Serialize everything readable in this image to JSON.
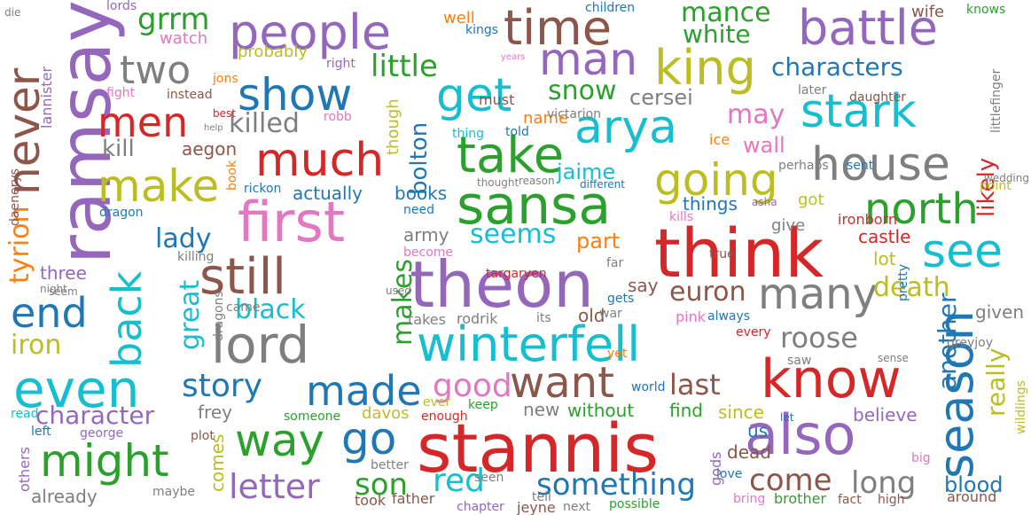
{
  "palette": {
    "blue": "#1f77b4",
    "orange": "#ff7f0e",
    "green": "#2ca02c",
    "red": "#d62728",
    "purple": "#9467bd",
    "brown": "#8c564b",
    "pink": "#e377c2",
    "gray": "#7f7f7f",
    "olive": "#bcbd22",
    "cyan": "#17becf"
  },
  "words": [
    {
      "text": "stannis",
      "color": "red"
    },
    {
      "text": "think",
      "color": "red"
    },
    {
      "text": "theon",
      "color": "purple"
    },
    {
      "text": "ramsay",
      "color": "purple"
    },
    {
      "text": "sansa",
      "color": "green"
    },
    {
      "text": "first",
      "color": "pink"
    },
    {
      "text": "lord",
      "color": "gray"
    },
    {
      "text": "winterfell",
      "color": "cyan"
    },
    {
      "text": "know",
      "color": "red"
    },
    {
      "text": "also",
      "color": "purple"
    },
    {
      "text": "even",
      "color": "cyan"
    },
    {
      "text": "still",
      "color": "brown"
    },
    {
      "text": "take",
      "color": "green"
    },
    {
      "text": "people",
      "color": "purple"
    },
    {
      "text": "time",
      "color": "brown"
    },
    {
      "text": "battle",
      "color": "purple"
    },
    {
      "text": "king",
      "color": "olive"
    },
    {
      "text": "arya",
      "color": "cyan"
    },
    {
      "text": "stark",
      "color": "cyan"
    },
    {
      "text": "house",
      "color": "gray"
    },
    {
      "text": "much",
      "color": "red"
    },
    {
      "text": "going",
      "color": "olive"
    },
    {
      "text": "show",
      "color": "blue"
    },
    {
      "text": "get",
      "color": "cyan"
    },
    {
      "text": "man",
      "color": "purple"
    },
    {
      "text": "make",
      "color": "olive"
    },
    {
      "text": "north",
      "color": "green"
    },
    {
      "text": "see",
      "color": "cyan"
    },
    {
      "text": "season",
      "color": "blue"
    },
    {
      "text": "many",
      "color": "gray"
    },
    {
      "text": "way",
      "color": "green"
    },
    {
      "text": "might",
      "color": "green"
    },
    {
      "text": "want",
      "color": "brown"
    },
    {
      "text": "made",
      "color": "blue"
    },
    {
      "text": "go",
      "color": "blue"
    },
    {
      "text": "never",
      "color": "brown"
    },
    {
      "text": "back",
      "color": "cyan"
    },
    {
      "text": "end",
      "color": "blue"
    },
    {
      "text": "men",
      "color": "red"
    },
    {
      "text": "two",
      "color": "gray"
    },
    {
      "text": "grrm",
      "color": "green"
    },
    {
      "text": "little",
      "color": "green"
    },
    {
      "text": "mance",
      "color": "green"
    },
    {
      "text": "white",
      "color": "green"
    },
    {
      "text": "characters",
      "color": "blue"
    },
    {
      "text": "killed",
      "color": "gray"
    },
    {
      "text": "snow",
      "color": "green"
    },
    {
      "text": "cersei",
      "color": "gray"
    },
    {
      "text": "may",
      "color": "pink"
    },
    {
      "text": "wall",
      "color": "pink"
    },
    {
      "text": "likely",
      "color": "red"
    },
    {
      "text": "kill",
      "color": "gray"
    },
    {
      "text": "aegon",
      "color": "brown"
    },
    {
      "text": "jaime",
      "color": "cyan"
    },
    {
      "text": "bolton",
      "color": "blue"
    },
    {
      "text": "tyrion",
      "color": "orange"
    },
    {
      "text": "lady",
      "color": "blue"
    },
    {
      "text": "seems",
      "color": "cyan"
    },
    {
      "text": "part",
      "color": "orange"
    },
    {
      "text": "books",
      "color": "blue"
    },
    {
      "text": "actually",
      "color": "blue"
    },
    {
      "text": "things",
      "color": "blue"
    },
    {
      "text": "got",
      "color": "olive"
    },
    {
      "text": "give",
      "color": "gray"
    },
    {
      "text": "castle",
      "color": "red"
    },
    {
      "text": "euron",
      "color": "brown"
    },
    {
      "text": "death",
      "color": "olive"
    },
    {
      "text": "roose",
      "color": "gray"
    },
    {
      "text": "another",
      "color": "blue"
    },
    {
      "text": "really",
      "color": "olive"
    },
    {
      "text": "great",
      "color": "cyan"
    },
    {
      "text": "makes",
      "color": "green"
    },
    {
      "text": "black",
      "color": "cyan"
    },
    {
      "text": "iron",
      "color": "olive"
    },
    {
      "text": "story",
      "color": "blue"
    },
    {
      "text": "good",
      "color": "pink"
    },
    {
      "text": "last",
      "color": "brown"
    },
    {
      "text": "character",
      "color": "purple"
    },
    {
      "text": "frey",
      "color": "gray"
    },
    {
      "text": "believe",
      "color": "purple"
    },
    {
      "text": "letter",
      "color": "purple"
    },
    {
      "text": "son",
      "color": "green"
    },
    {
      "text": "red",
      "color": "cyan"
    },
    {
      "text": "something",
      "color": "blue"
    },
    {
      "text": "come",
      "color": "brown"
    },
    {
      "text": "long",
      "color": "gray"
    },
    {
      "text": "blood",
      "color": "blue"
    },
    {
      "text": "army",
      "color": "gray"
    },
    {
      "text": "say",
      "color": "brown"
    },
    {
      "text": "lot",
      "color": "olive"
    },
    {
      "text": "given",
      "color": "gray"
    },
    {
      "text": "three",
      "color": "purple"
    },
    {
      "text": "greyjoy",
      "color": "gray"
    },
    {
      "text": "without",
      "color": "green"
    },
    {
      "text": "find",
      "color": "green"
    },
    {
      "text": "since",
      "color": "olive"
    },
    {
      "text": "us",
      "color": "blue"
    },
    {
      "text": "dead",
      "color": "brown"
    },
    {
      "text": "new",
      "color": "gray"
    },
    {
      "text": "old",
      "color": "brown"
    },
    {
      "text": "davos",
      "color": "olive"
    },
    {
      "text": "comes",
      "color": "olive"
    },
    {
      "text": "already",
      "color": "gray"
    },
    {
      "text": "others",
      "color": "purple"
    },
    {
      "text": "rodrik",
      "color": "gray"
    },
    {
      "text": "takes",
      "color": "gray"
    },
    {
      "text": "targaryen",
      "color": "red"
    },
    {
      "text": "point",
      "color": "olive"
    },
    {
      "text": "ironborn",
      "color": "red"
    },
    {
      "text": "daughter",
      "color": "brown"
    },
    {
      "text": "well",
      "color": "orange"
    },
    {
      "text": "children",
      "color": "blue"
    },
    {
      "text": "kings",
      "color": "blue"
    },
    {
      "text": "wife",
      "color": "brown"
    },
    {
      "text": "knows",
      "color": "green"
    },
    {
      "text": "lords",
      "color": "purple"
    },
    {
      "text": "watch",
      "color": "pink"
    },
    {
      "text": "probably",
      "color": "olive"
    },
    {
      "text": "right",
      "color": "purple"
    },
    {
      "text": "jons",
      "color": "orange"
    },
    {
      "text": "fight",
      "color": "pink"
    },
    {
      "text": "instead",
      "color": "brown"
    },
    {
      "text": "best",
      "color": "red"
    },
    {
      "text": "help",
      "color": "gray"
    },
    {
      "text": "robb",
      "color": "pink"
    },
    {
      "text": "though",
      "color": "olive"
    },
    {
      "text": "must",
      "color": "brown"
    },
    {
      "text": "name",
      "color": "orange"
    },
    {
      "text": "told",
      "color": "blue"
    },
    {
      "text": "thing",
      "color": "cyan"
    },
    {
      "text": "victarion",
      "color": "gray"
    },
    {
      "text": "ice",
      "color": "orange"
    },
    {
      "text": "perhaps",
      "color": "gray"
    },
    {
      "text": "sent",
      "color": "blue"
    },
    {
      "text": "later",
      "color": "gray"
    },
    {
      "text": "littlefinger",
      "color": "gray"
    },
    {
      "text": "wedding",
      "color": "gray"
    },
    {
      "text": "die",
      "color": "gray"
    },
    {
      "text": "lannister",
      "color": "purple"
    },
    {
      "text": "daenerys",
      "color": "brown"
    },
    {
      "text": "book",
      "color": "orange"
    },
    {
      "text": "rickon",
      "color": "blue"
    },
    {
      "text": "dragon",
      "color": "blue"
    },
    {
      "text": "thought",
      "color": "gray"
    },
    {
      "text": "reason",
      "color": "gray"
    },
    {
      "text": "different",
      "color": "blue"
    },
    {
      "text": "kills",
      "color": "pink"
    },
    {
      "text": "asha",
      "color": "purple"
    },
    {
      "text": "seem",
      "color": "gray"
    },
    {
      "text": "need",
      "color": "blue"
    },
    {
      "text": "become",
      "color": "pink"
    },
    {
      "text": "far",
      "color": "gray"
    },
    {
      "text": "true",
      "color": "brown"
    },
    {
      "text": "killing",
      "color": "gray"
    },
    {
      "text": "night",
      "color": "gray"
    },
    {
      "text": "used",
      "color": "gray"
    },
    {
      "text": "came",
      "color": "gray"
    },
    {
      "text": "dragons",
      "color": "gray"
    },
    {
      "text": "its",
      "color": "gray"
    },
    {
      "text": "war",
      "color": "gray"
    },
    {
      "text": "gets",
      "color": "blue"
    },
    {
      "text": "pink",
      "color": "pink"
    },
    {
      "text": "always",
      "color": "blue"
    },
    {
      "text": "pretty",
      "color": "blue"
    },
    {
      "text": "every",
      "color": "red"
    },
    {
      "text": "yet",
      "color": "orange"
    },
    {
      "text": "saw",
      "color": "gray"
    },
    {
      "text": "sense",
      "color": "gray"
    },
    {
      "text": "wildlings",
      "color": "olive"
    },
    {
      "text": "world",
      "color": "blue"
    },
    {
      "text": "ever",
      "color": "olive"
    },
    {
      "text": "keep",
      "color": "green"
    },
    {
      "text": "enough",
      "color": "red"
    },
    {
      "text": "someone",
      "color": "green"
    },
    {
      "text": "read",
      "color": "cyan"
    },
    {
      "text": "left",
      "color": "blue"
    },
    {
      "text": "george",
      "color": "purple"
    },
    {
      "text": "plot",
      "color": "brown"
    },
    {
      "text": "let",
      "color": "blue"
    },
    {
      "text": "big",
      "color": "pink"
    },
    {
      "text": "maybe",
      "color": "gray"
    },
    {
      "text": "better",
      "color": "gray"
    },
    {
      "text": "seen",
      "color": "gray"
    },
    {
      "text": "took",
      "color": "brown"
    },
    {
      "text": "father",
      "color": "brown"
    },
    {
      "text": "tell",
      "color": "gray"
    },
    {
      "text": "chapter",
      "color": "purple"
    },
    {
      "text": "next",
      "color": "gray"
    },
    {
      "text": "jeyne",
      "color": "brown"
    },
    {
      "text": "possible",
      "color": "green"
    },
    {
      "text": "love",
      "color": "blue"
    },
    {
      "text": "gods",
      "color": "purple"
    },
    {
      "text": "bring",
      "color": "pink"
    },
    {
      "text": "brother",
      "color": "green"
    },
    {
      "text": "fact",
      "color": "brown"
    },
    {
      "text": "high",
      "color": "brown"
    },
    {
      "text": "around",
      "color": "brown"
    },
    {
      "text": "years",
      "color": "pink"
    }
  ]
}
